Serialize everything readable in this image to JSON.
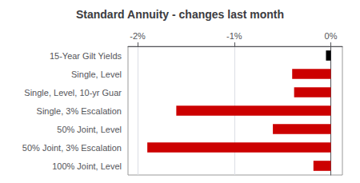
{
  "chart_data": {
    "type": "bar",
    "orientation": "horizontal",
    "title": "Standard Annuity - changes last month",
    "categories": [
      "15-Year Gilt Yields",
      "Single, Level",
      "Single, Level, 10-yr Guar",
      "Single, 3% Escalation",
      "50% Joint, Level",
      "50% Joint, 3% Escalation",
      "100% Joint, Level"
    ],
    "values": [
      -0.05,
      -0.4,
      -0.38,
      -1.6,
      -0.6,
      -1.9,
      -0.18
    ],
    "colors": [
      "#000000",
      "#cc0000",
      "#cc0000",
      "#cc0000",
      "#cc0000",
      "#cc0000",
      "#cc0000"
    ],
    "xlim": [
      -2.1,
      0.12
    ],
    "xticks": [
      {
        "value": -2.0,
        "label": "-2%"
      },
      {
        "value": -1.0,
        "label": "-1%"
      },
      {
        "value": 0.0,
        "label": "0%"
      }
    ],
    "grid": true
  }
}
